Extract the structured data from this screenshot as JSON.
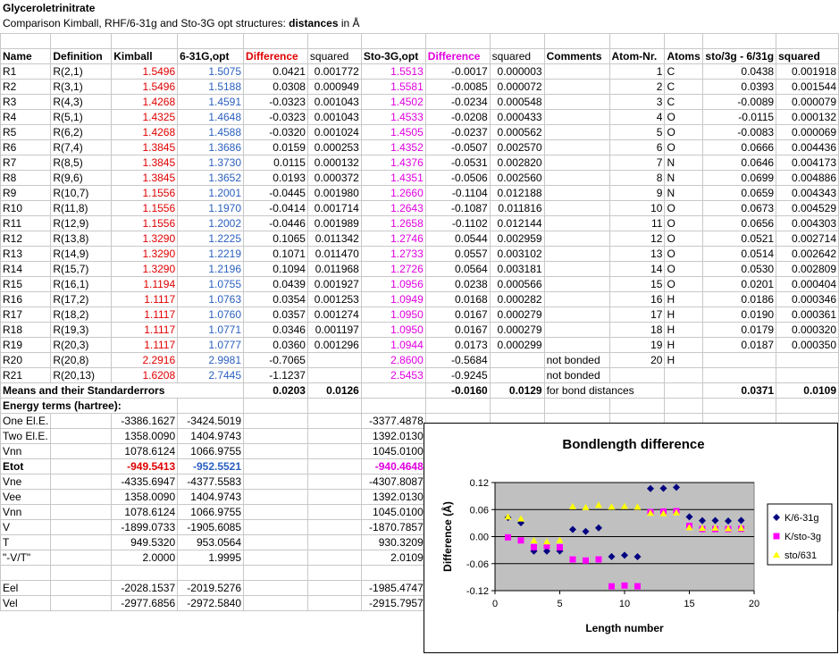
{
  "sheet": {
    "title": "Glyceroletrinitrate",
    "subtitle_prefix": "Comparison Kimball, RHF/6-31g and Sto-3G opt structures: ",
    "subtitle_bold": "distances",
    "subtitle_suffix": " in Å"
  },
  "headers": [
    "Name",
    "Definition",
    "Kimball",
    "6-31G,opt",
    "Difference",
    "squared",
    "Sto-3G,opt",
    "Difference",
    "squared",
    "Comments",
    "Atom-Nr.",
    "Atoms",
    "sto/3g - 6/31g",
    "squared"
  ],
  "rows": [
    [
      "R1",
      "R(2,1)",
      "1.5496",
      "1.5075",
      "0.0421",
      "0.001772",
      "1.5513",
      "-0.0017",
      "0.000003",
      "",
      "1",
      "C",
      "0.0438",
      "0.001918"
    ],
    [
      "R2",
      "R(3,1)",
      "1.5496",
      "1.5188",
      "0.0308",
      "0.000949",
      "1.5581",
      "-0.0085",
      "0.000072",
      "",
      "2",
      "C",
      "0.0393",
      "0.001544"
    ],
    [
      "R3",
      "R(4,3)",
      "1.4268",
      "1.4591",
      "-0.0323",
      "0.001043",
      "1.4502",
      "-0.0234",
      "0.000548",
      "",
      "3",
      "C",
      "-0.0089",
      "0.000079"
    ],
    [
      "R4",
      "R(5,1)",
      "1.4325",
      "1.4648",
      "-0.0323",
      "0.001043",
      "1.4533",
      "-0.0208",
      "0.000433",
      "",
      "4",
      "O",
      "-0.0115",
      "0.000132"
    ],
    [
      "R5",
      "R(6,2)",
      "1.4268",
      "1.4588",
      "-0.0320",
      "0.001024",
      "1.4505",
      "-0.0237",
      "0.000562",
      "",
      "5",
      "O",
      "-0.0083",
      "0.000069"
    ],
    [
      "R6",
      "R(7,4)",
      "1.3845",
      "1.3686",
      "0.0159",
      "0.000253",
      "1.4352",
      "-0.0507",
      "0.002570",
      "",
      "6",
      "O",
      "0.0666",
      "0.004436"
    ],
    [
      "R7",
      "R(8,5)",
      "1.3845",
      "1.3730",
      "0.0115",
      "0.000132",
      "1.4376",
      "-0.0531",
      "0.002820",
      "",
      "7",
      "N",
      "0.0646",
      "0.004173"
    ],
    [
      "R8",
      "R(9,6)",
      "1.3845",
      "1.3652",
      "0.0193",
      "0.000372",
      "1.4351",
      "-0.0506",
      "0.002560",
      "",
      "8",
      "N",
      "0.0699",
      "0.004886"
    ],
    [
      "R9",
      "R(10,7)",
      "1.1556",
      "1.2001",
      "-0.0445",
      "0.001980",
      "1.2660",
      "-0.1104",
      "0.012188",
      "",
      "9",
      "N",
      "0.0659",
      "0.004343"
    ],
    [
      "R10",
      "R(11,8)",
      "1.1556",
      "1.1970",
      "-0.0414",
      "0.001714",
      "1.2643",
      "-0.1087",
      "0.011816",
      "",
      "10",
      "O",
      "0.0673",
      "0.004529"
    ],
    [
      "R11",
      "R(12,9)",
      "1.1556",
      "1.2002",
      "-0.0446",
      "0.001989",
      "1.2658",
      "-0.1102",
      "0.012144",
      "",
      "11",
      "O",
      "0.0656",
      "0.004303"
    ],
    [
      "R12",
      "R(13,8)",
      "1.3290",
      "1.2225",
      "0.1065",
      "0.011342",
      "1.2746",
      "0.0544",
      "0.002959",
      "",
      "12",
      "O",
      "0.0521",
      "0.002714"
    ],
    [
      "R13",
      "R(14,9)",
      "1.3290",
      "1.2219",
      "0.1071",
      "0.011470",
      "1.2733",
      "0.0557",
      "0.003102",
      "",
      "13",
      "O",
      "0.0514",
      "0.002642"
    ],
    [
      "R14",
      "R(15,7)",
      "1.3290",
      "1.2196",
      "0.1094",
      "0.011968",
      "1.2726",
      "0.0564",
      "0.003181",
      "",
      "14",
      "O",
      "0.0530",
      "0.002809"
    ],
    [
      "R15",
      "R(16,1)",
      "1.1194",
      "1.0755",
      "0.0439",
      "0.001927",
      "1.0956",
      "0.0238",
      "0.000566",
      "",
      "15",
      "O",
      "0.0201",
      "0.000404"
    ],
    [
      "R16",
      "R(17,2)",
      "1.1117",
      "1.0763",
      "0.0354",
      "0.001253",
      "1.0949",
      "0.0168",
      "0.000282",
      "",
      "16",
      "H",
      "0.0186",
      "0.000346"
    ],
    [
      "R17",
      "R(18,2)",
      "1.1117",
      "1.0760",
      "0.0357",
      "0.001274",
      "1.0950",
      "0.0167",
      "0.000279",
      "",
      "17",
      "H",
      "0.0190",
      "0.000361"
    ],
    [
      "R18",
      "R(19,3)",
      "1.1117",
      "1.0771",
      "0.0346",
      "0.001197",
      "1.0950",
      "0.0167",
      "0.000279",
      "",
      "18",
      "H",
      "0.0179",
      "0.000320"
    ],
    [
      "R19",
      "R(20,3)",
      "1.1117",
      "1.0777",
      "0.0360",
      "0.001296",
      "1.0944",
      "0.0173",
      "0.000299",
      "",
      "19",
      "H",
      "0.0187",
      "0.000350"
    ],
    [
      "R20",
      "R(20,8)",
      "2.2916",
      "2.9981",
      "-0.7065",
      "",
      "2.8600",
      "-0.5684",
      "",
      "not bonded",
      "20",
      "H",
      "",
      ""
    ],
    [
      "R21",
      "R(20,13)",
      "1.6208",
      "2.7445",
      "-1.1237",
      "",
      "2.5453",
      "-0.9245",
      "",
      "not bonded",
      "",
      "",
      "",
      ""
    ]
  ],
  "means": {
    "label": "Means and their Standarderrors",
    "d631": "0.0203",
    "s631": "0.0126",
    "dsto": "-0.0160",
    "ssto": "0.0129",
    "comment": "for bond distances",
    "dx": "0.0371",
    "sx": "0.0109"
  },
  "energy": {
    "header": "Energy terms (hartree):",
    "rows": [
      [
        "One El.E.",
        "-3386.1627",
        "-3424.5019",
        "-3377.4878"
      ],
      [
        "Two El.E.",
        "1358.0090",
        "1404.9743",
        "1392.0130"
      ],
      [
        "Vnn",
        "1078.6124",
        "1066.9755",
        "1045.0100"
      ],
      [
        "Etot",
        "-949.5413",
        "-952.5521",
        "-940.4648"
      ],
      [
        "Vne",
        "-4335.6947",
        "-4377.5583",
        "-4307.8087"
      ],
      [
        "Vee",
        "1358.0090",
        "1404.9743",
        "1392.0130"
      ],
      [
        "Vnn",
        "1078.6124",
        "1066.9755",
        "1045.0100"
      ],
      [
        "V",
        "-1899.0733",
        "-1905.6085",
        "-1870.7857"
      ],
      [
        "T",
        "949.5320",
        "953.0564",
        "930.3209"
      ],
      [
        "\"-V/T\"",
        "2.0000",
        "1.9995",
        "2.0109"
      ],
      [
        "",
        "",
        "",
        ""
      ],
      [
        "Eel",
        "-2028.1537",
        "-2019.5276",
        "-1985.4747"
      ],
      [
        "Vel",
        "-2977.6856",
        "-2972.5840",
        "-2915.7957"
      ]
    ]
  },
  "colors": {
    "red": "#e00000",
    "blue": "#2a5fbf",
    "magenta": "#e000e0",
    "plot_bg": "#c0c0c0",
    "navy": "#000080",
    "yellow": "#ffff00"
  },
  "chart_data": {
    "type": "scatter",
    "title": "Bondlength difference",
    "xlabel": "Length number",
    "ylabel": "Difference (Å)",
    "xlim": [
      0,
      20
    ],
    "ylim": [
      -0.12,
      0.12
    ],
    "xticks": [
      "0",
      "5",
      "10",
      "15",
      "20"
    ],
    "yticks": [
      "0.12",
      "0.06",
      "0.00",
      "-0.06",
      "-0.12"
    ],
    "legend_position": "right",
    "series": [
      {
        "name": "K/6-31g",
        "color": "#000080",
        "marker": "diamond",
        "x": [
          1,
          2,
          3,
          4,
          5,
          6,
          7,
          8,
          9,
          10,
          11,
          12,
          13,
          14,
          15,
          16,
          17,
          18,
          19
        ],
        "y": [
          0.0421,
          0.0308,
          -0.0323,
          -0.0323,
          -0.032,
          0.0159,
          0.0115,
          0.0193,
          -0.0445,
          -0.0414,
          -0.0446,
          0.1065,
          0.1071,
          0.1094,
          0.0439,
          0.0354,
          0.0357,
          0.0346,
          0.036
        ]
      },
      {
        "name": "K/sto-3g",
        "color": "#ff00ff",
        "marker": "square",
        "x": [
          1,
          2,
          3,
          4,
          5,
          6,
          7,
          8,
          9,
          10,
          11,
          12,
          13,
          14,
          15,
          16,
          17,
          18,
          19
        ],
        "y": [
          -0.0017,
          -0.0085,
          -0.0234,
          -0.0208,
          -0.0237,
          -0.0507,
          -0.0531,
          -0.0506,
          -0.1104,
          -0.1087,
          -0.1102,
          0.0544,
          0.0557,
          0.0564,
          0.0238,
          0.0168,
          0.0167,
          0.0167,
          0.0173
        ]
      },
      {
        "name": "sto/631",
        "color": "#ffff00",
        "marker": "triangle",
        "x": [
          1,
          2,
          3,
          4,
          5,
          6,
          7,
          8,
          9,
          10,
          11,
          12,
          13,
          14,
          15,
          16,
          17,
          18,
          19
        ],
        "y": [
          0.0438,
          0.0393,
          -0.0089,
          -0.0115,
          -0.0083,
          0.0666,
          0.0646,
          0.0699,
          0.0659,
          0.0673,
          0.0656,
          0.0521,
          0.0514,
          0.053,
          0.0201,
          0.0186,
          0.019,
          0.0179,
          0.0187
        ]
      }
    ]
  }
}
